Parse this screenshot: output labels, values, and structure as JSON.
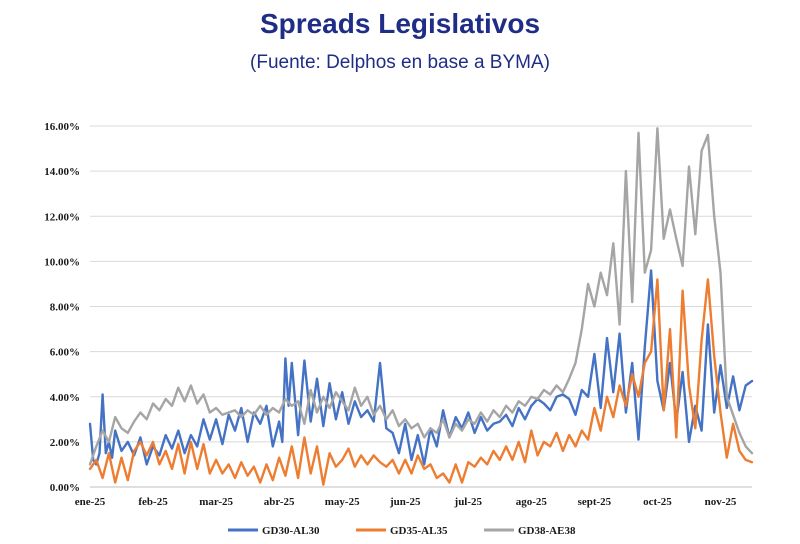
{
  "title": "Spreads Legislativos",
  "subtitle": "(Fuente: Delphos en base a BYMA)",
  "chart_data": {
    "type": "line",
    "x": [
      "ene-25",
      "feb-25",
      "mar-25",
      "abr-25",
      "may-25",
      "jun-25",
      "jul-25",
      "ago-25",
      "sept-25",
      "oct-25",
      "nov-25"
    ],
    "x_index_range": [
      0,
      10.5
    ],
    "ylim": [
      0,
      16
    ],
    "yticks": [
      0,
      2,
      4,
      6,
      8,
      10,
      12,
      14,
      16
    ],
    "ytick_labels": [
      "0.00%",
      "2.00%",
      "4.00%",
      "6.00%",
      "8.00%",
      "10.00%",
      "12.00%",
      "14.00%",
      "16.00%"
    ],
    "grid": true,
    "legend_position": "bottom",
    "series": [
      {
        "name": "GD30-AL30",
        "color": "#4472c4",
        "x": [
          0,
          0.05,
          0.1,
          0.15,
          0.2,
          0.25,
          0.3,
          0.35,
          0.4,
          0.5,
          0.6,
          0.7,
          0.8,
          0.9,
          1.0,
          1.1,
          1.2,
          1.3,
          1.4,
          1.5,
          1.6,
          1.7,
          1.8,
          1.9,
          2.0,
          2.1,
          2.2,
          2.3,
          2.4,
          2.5,
          2.6,
          2.7,
          2.8,
          2.9,
          3.0,
          3.05,
          3.1,
          3.15,
          3.2,
          3.3,
          3.4,
          3.5,
          3.6,
          3.7,
          3.8,
          3.9,
          4.0,
          4.1,
          4.2,
          4.3,
          4.4,
          4.5,
          4.6,
          4.7,
          4.8,
          4.9,
          5.0,
          5.1,
          5.2,
          5.3,
          5.4,
          5.5,
          5.6,
          5.7,
          5.8,
          5.9,
          6.0,
          6.1,
          6.2,
          6.3,
          6.4,
          6.5,
          6.6,
          6.7,
          6.8,
          6.9,
          7.0,
          7.1,
          7.2,
          7.3,
          7.4,
          7.5,
          7.6,
          7.7,
          7.8,
          7.9,
          8.0,
          8.1,
          8.2,
          8.3,
          8.4,
          8.5,
          8.6,
          8.7,
          8.8,
          8.9,
          9.0,
          9.1,
          9.2,
          9.3,
          9.4,
          9.5,
          9.6,
          9.7,
          9.8,
          9.9,
          10.0,
          10.1,
          10.2,
          10.3,
          10.4,
          10.5
        ],
        "values": [
          2.8,
          1.2,
          1.0,
          1.5,
          4.1,
          1.5,
          2.0,
          1.3,
          2.5,
          1.6,
          2.0,
          1.4,
          2.2,
          1.0,
          1.8,
          1.4,
          2.3,
          1.7,
          2.5,
          1.5,
          2.3,
          1.8,
          3.0,
          2.1,
          3.0,
          1.9,
          3.2,
          2.5,
          3.5,
          2.0,
          3.3,
          2.8,
          3.6,
          1.8,
          2.9,
          2.0,
          5.7,
          3.6,
          5.5,
          2.3,
          5.6,
          2.9,
          4.8,
          2.7,
          4.6,
          3.0,
          4.2,
          2.8,
          3.8,
          3.1,
          3.4,
          2.9,
          5.5,
          2.6,
          2.4,
          1.5,
          2.8,
          1.2,
          2.3,
          1.0,
          2.6,
          1.8,
          3.4,
          2.2,
          3.1,
          2.6,
          3.3,
          2.4,
          3.1,
          2.5,
          2.8,
          2.9,
          3.2,
          2.7,
          3.5,
          3.0,
          3.6,
          3.9,
          3.7,
          3.4,
          4.0,
          4.1,
          3.9,
          3.2,
          4.3,
          4.0,
          5.9,
          3.5,
          6.6,
          4.2,
          6.8,
          3.3,
          5.5,
          2.1,
          6.2,
          9.6,
          4.7,
          3.4,
          5.5,
          2.9,
          5.1,
          2.0,
          3.6,
          2.5,
          7.2,
          3.3,
          5.4,
          3.5,
          4.9,
          3.4,
          4.5,
          4.7
        ]
      },
      {
        "name": "GD35-AL35",
        "color": "#ed7d31",
        "x": [
          0,
          0.1,
          0.2,
          0.3,
          0.4,
          0.5,
          0.6,
          0.7,
          0.8,
          0.9,
          1.0,
          1.1,
          1.2,
          1.3,
          1.4,
          1.5,
          1.6,
          1.7,
          1.8,
          1.9,
          2.0,
          2.1,
          2.2,
          2.3,
          2.4,
          2.5,
          2.6,
          2.7,
          2.8,
          2.9,
          3.0,
          3.1,
          3.2,
          3.3,
          3.4,
          3.5,
          3.6,
          3.7,
          3.8,
          3.9,
          4.0,
          4.1,
          4.2,
          4.3,
          4.4,
          4.5,
          4.6,
          4.7,
          4.8,
          4.9,
          5.0,
          5.1,
          5.2,
          5.3,
          5.4,
          5.5,
          5.6,
          5.7,
          5.8,
          5.9,
          6.0,
          6.1,
          6.2,
          6.3,
          6.4,
          6.5,
          6.6,
          6.7,
          6.8,
          6.9,
          7.0,
          7.1,
          7.2,
          7.3,
          7.4,
          7.5,
          7.6,
          7.7,
          7.8,
          7.9,
          8.0,
          8.1,
          8.2,
          8.3,
          8.4,
          8.5,
          8.6,
          8.7,
          8.8,
          8.9,
          9.0,
          9.1,
          9.2,
          9.3,
          9.4,
          9.5,
          9.6,
          9.7,
          9.8,
          9.9,
          10.0,
          10.1,
          10.2,
          10.3,
          10.4,
          10.5
        ],
        "values": [
          0.8,
          1.2,
          0.4,
          1.5,
          0.2,
          1.3,
          0.3,
          1.6,
          2.0,
          1.4,
          2.0,
          1.0,
          1.6,
          0.8,
          1.9,
          0.6,
          2.0,
          0.8,
          1.9,
          0.6,
          1.2,
          0.6,
          1.0,
          0.4,
          1.1,
          0.5,
          0.9,
          0.2,
          1.0,
          0.3,
          1.3,
          0.5,
          1.8,
          0.4,
          2.2,
          0.6,
          1.8,
          0.1,
          1.5,
          0.9,
          1.2,
          1.7,
          0.9,
          1.4,
          1.0,
          1.4,
          1.1,
          0.9,
          1.2,
          0.6,
          1.2,
          0.6,
          1.4,
          0.8,
          1.0,
          0.4,
          0.6,
          0.2,
          1.0,
          0.2,
          1.1,
          0.9,
          1.3,
          1.0,
          1.6,
          1.2,
          1.8,
          1.2,
          2.0,
          1.1,
          2.5,
          1.4,
          2.0,
          1.8,
          2.4,
          1.6,
          2.3,
          1.8,
          2.5,
          2.1,
          3.5,
          2.5,
          4.0,
          3.1,
          4.5,
          3.6,
          5.0,
          4.0,
          5.5,
          6.0,
          9.2,
          3.4,
          7.0,
          2.2,
          8.7,
          4.5,
          2.6,
          6.5,
          9.2,
          5.8,
          3.3,
          1.3,
          2.8,
          1.6,
          1.2,
          1.1
        ]
      },
      {
        "name": "GD38-AE38",
        "color": "#a5a5a5",
        "x": [
          0,
          0.1,
          0.2,
          0.3,
          0.4,
          0.5,
          0.6,
          0.7,
          0.8,
          0.9,
          1.0,
          1.1,
          1.2,
          1.3,
          1.4,
          1.5,
          1.6,
          1.7,
          1.8,
          1.9,
          2.0,
          2.1,
          2.2,
          2.3,
          2.4,
          2.5,
          2.6,
          2.7,
          2.8,
          2.9,
          3.0,
          3.1,
          3.2,
          3.3,
          3.4,
          3.5,
          3.6,
          3.7,
          3.8,
          3.9,
          4.0,
          4.1,
          4.2,
          4.3,
          4.4,
          4.5,
          4.6,
          4.7,
          4.8,
          4.9,
          5.0,
          5.1,
          5.2,
          5.3,
          5.4,
          5.5,
          5.6,
          5.7,
          5.8,
          5.9,
          6.0,
          6.1,
          6.2,
          6.3,
          6.4,
          6.5,
          6.6,
          6.7,
          6.8,
          6.9,
          7.0,
          7.1,
          7.2,
          7.3,
          7.4,
          7.5,
          7.6,
          7.7,
          7.8,
          7.9,
          8.0,
          8.1,
          8.2,
          8.3,
          8.4,
          8.5,
          8.6,
          8.7,
          8.8,
          8.9,
          9.0,
          9.1,
          9.2,
          9.3,
          9.4,
          9.5,
          9.6,
          9.7,
          9.8,
          9.9,
          10.0,
          10.1,
          10.2,
          10.3,
          10.4,
          10.5
        ],
        "values": [
          1.0,
          1.8,
          2.5,
          2.0,
          3.1,
          2.6,
          2.4,
          2.9,
          3.3,
          3.0,
          3.7,
          3.4,
          3.9,
          3.6,
          4.4,
          3.8,
          4.5,
          3.7,
          4.1,
          3.3,
          3.5,
          3.2,
          3.3,
          3.4,
          3.1,
          3.4,
          3.2,
          3.6,
          3.2,
          3.5,
          3.3,
          3.9,
          3.6,
          3.8,
          2.8,
          4.3,
          3.3,
          4.0,
          3.5,
          4.2,
          3.8,
          3.4,
          4.4,
          3.6,
          4.0,
          3.2,
          3.6,
          3.0,
          3.4,
          2.7,
          3.0,
          2.6,
          2.8,
          2.2,
          2.6,
          2.4,
          3.0,
          2.2,
          2.8,
          2.5,
          3.0,
          2.8,
          3.3,
          2.9,
          3.4,
          3.1,
          3.6,
          3.3,
          3.8,
          3.6,
          4.0,
          3.9,
          4.3,
          4.1,
          4.5,
          4.2,
          4.8,
          5.5,
          7.0,
          9.0,
          8.0,
          9.5,
          8.5,
          10.8,
          7.2,
          14.0,
          8.2,
          15.7,
          9.5,
          10.5,
          15.9,
          11.0,
          12.3,
          11.0,
          9.8,
          14.2,
          11.2,
          14.9,
          15.6,
          12.0,
          9.5,
          4.0,
          3.2,
          2.4,
          1.8,
          1.5
        ]
      }
    ]
  }
}
